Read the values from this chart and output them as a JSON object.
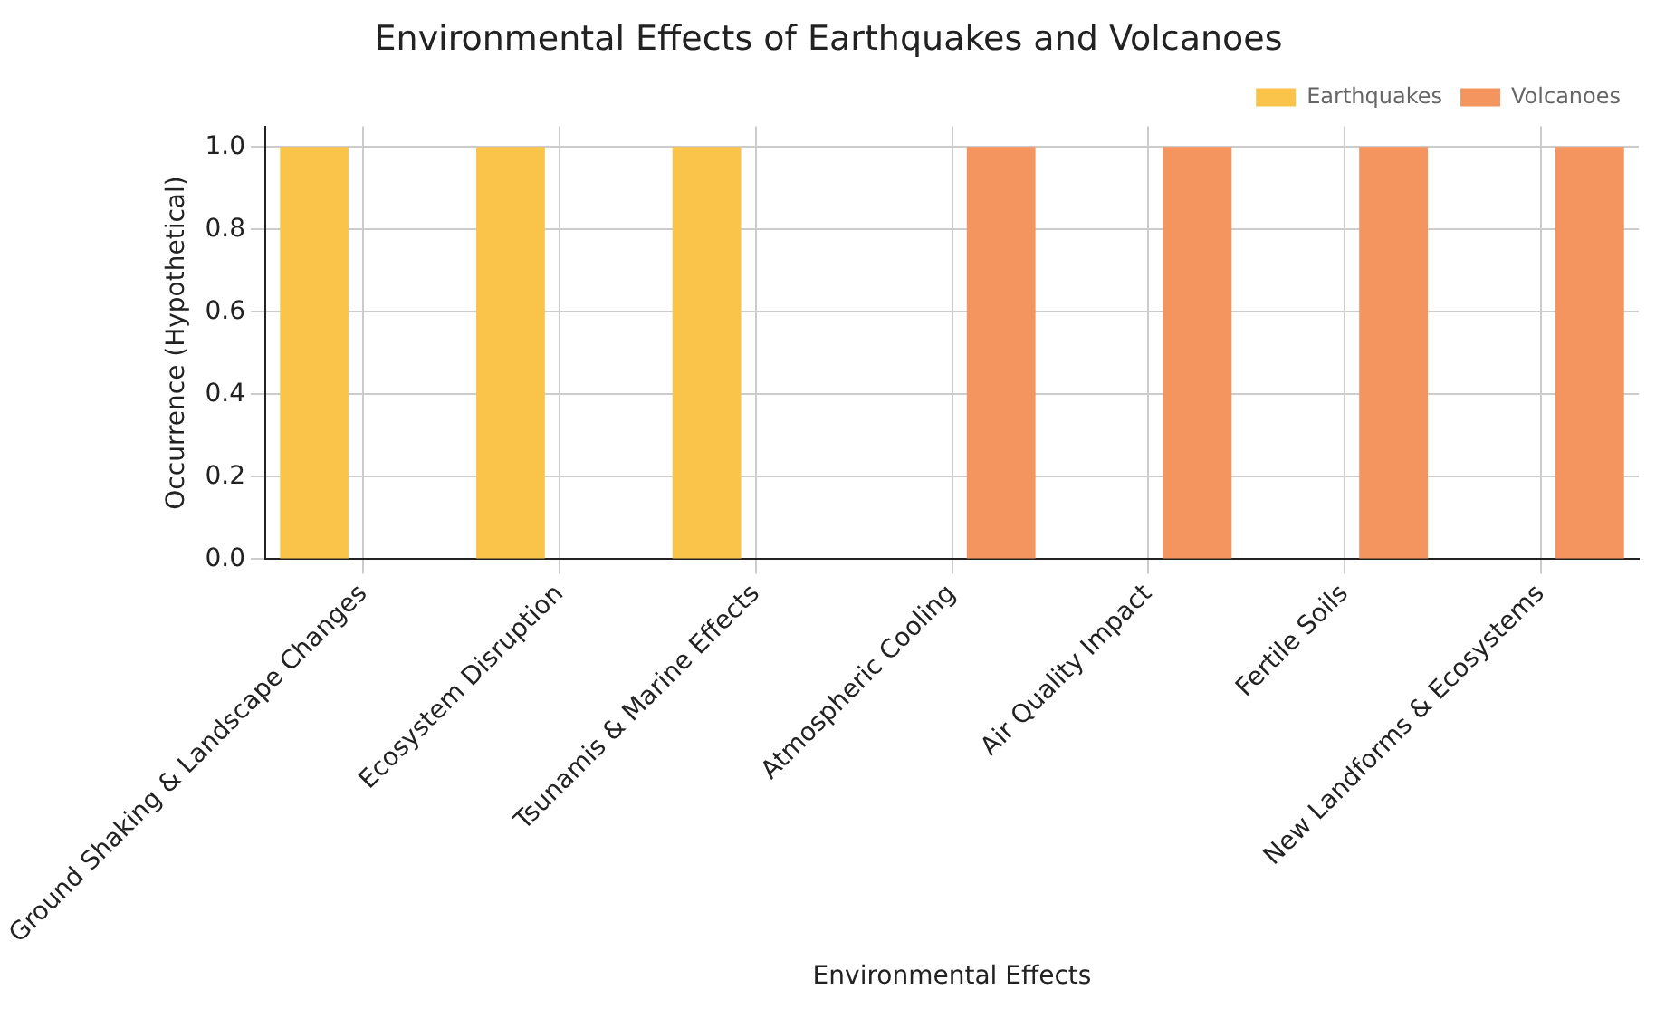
{
  "chart_data": {
    "type": "bar",
    "title": "Environmental Effects of Earthquakes and Volcanoes",
    "xlabel": "Environmental Effects",
    "ylabel": "Occurrence (Hypothetical)",
    "categories": [
      "Ground Shaking & Landscape Changes",
      "Ecosystem Disruption",
      "Tsunamis & Marine Effects",
      "Atmospheric Cooling",
      "Air Quality Impact",
      "Fertile Soils",
      "New Landforms & Ecosystems"
    ],
    "series": [
      {
        "name": "Earthquakes",
        "color": "#fac34a",
        "values": [
          1,
          1,
          1,
          0,
          0,
          0,
          0
        ]
      },
      {
        "name": "Volcanoes",
        "color": "#f4955f",
        "values": [
          0,
          0,
          0,
          1,
          1,
          1,
          1
        ]
      }
    ],
    "ylim": [
      0,
      1.05
    ],
    "yticks": [
      {
        "value": 0,
        "label": "0.0"
      },
      {
        "value": 0.2,
        "label": "0.2"
      },
      {
        "value": 0.4,
        "label": "0.4"
      },
      {
        "value": 0.6,
        "label": "0.6"
      },
      {
        "value": 0.8,
        "label": "0.8"
      },
      {
        "value": 1,
        "label": "1.0"
      }
    ],
    "grid": true,
    "legend": "top right"
  }
}
